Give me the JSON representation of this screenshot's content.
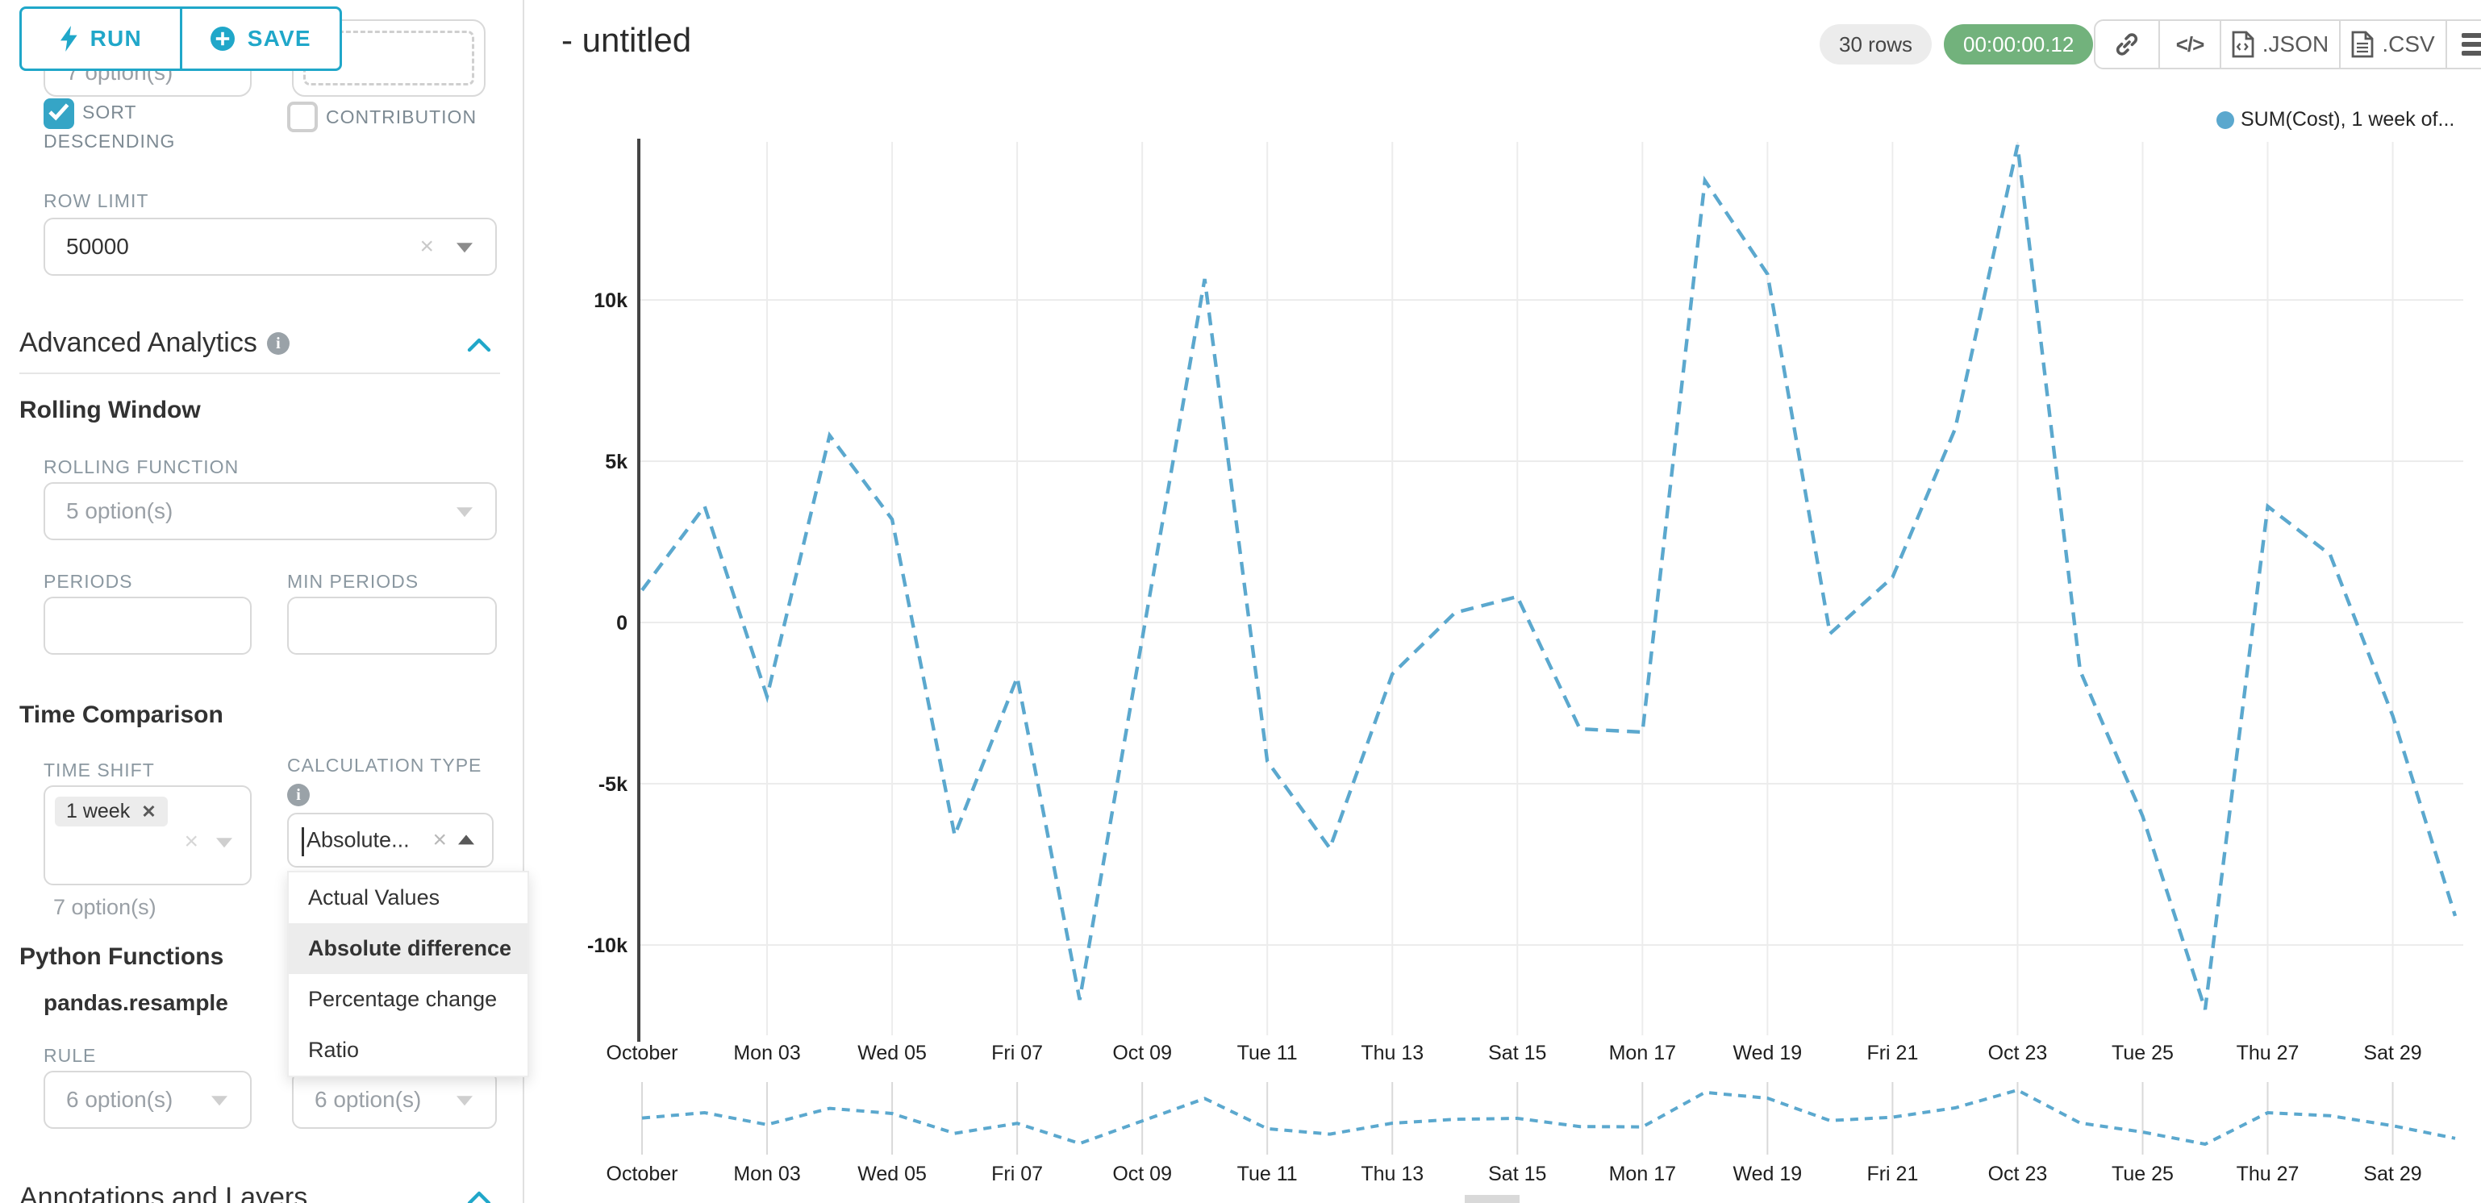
{
  "accent": "#20A7C9",
  "sidebar": {
    "run_label": "RUN",
    "save_label": "SAVE",
    "partial_select_value": "7 option(s)",
    "sort_descending": {
      "label_line1": "SORT",
      "label_line2": "DESCENDING",
      "checked": true
    },
    "contribution": {
      "label": "CONTRIBUTION",
      "checked": false
    },
    "row_limit": {
      "label": "ROW LIMIT",
      "value": "50000"
    },
    "advanced_analytics_title": "Advanced Analytics",
    "rolling_window": {
      "title": "Rolling Window",
      "rolling_function_label": "ROLLING FUNCTION",
      "rolling_function_value": "5 option(s)",
      "periods_label": "PERIODS",
      "min_periods_label": "MIN PERIODS"
    },
    "time_comparison": {
      "title": "Time Comparison",
      "time_shift_label": "TIME SHIFT",
      "time_shift_tag": "1 week",
      "time_shift_placeholder": "7 option(s)",
      "calculation_type_label": "CALCULATION TYPE",
      "calculation_type_value": "Absolute...",
      "dropdown_options": [
        "Actual Values",
        "Absolute difference",
        "Percentage change",
        "Ratio"
      ],
      "dropdown_selected": "Absolute difference"
    },
    "python_functions": {
      "title": "Python Functions",
      "function_name": "pandas.resample",
      "rule_label": "RULE",
      "rule_left_value": "6 option(s)",
      "rule_right_value": "6 option(s)"
    },
    "annotations_title": "Annotations and Layers"
  },
  "header": {
    "title": "- untitled",
    "rows_badge": "30 rows",
    "timer": "00:00:00.12",
    "json_label": ".JSON",
    "csv_label": ".CSV"
  },
  "chart_data": {
    "type": "line",
    "title": "- untitled",
    "line_style": "dashed",
    "line_color": "#5BA8CE",
    "grid": true,
    "legend": {
      "label": "SUM(Cost), 1 week of...",
      "color": "#5BA8CE",
      "position": "top-right"
    },
    "ylabel": "",
    "xlabel": "",
    "ylim": [
      -12700,
      15050
    ],
    "y_ticks": [
      {
        "value": 10000,
        "label": "10k"
      },
      {
        "value": 5000,
        "label": "5k"
      },
      {
        "value": 0,
        "label": "0"
      },
      {
        "value": -5000,
        "label": "-5k"
      },
      {
        "value": -10000,
        "label": "-10k"
      }
    ],
    "x_ticks": [
      {
        "day": 1,
        "label": "October"
      },
      {
        "day": 3,
        "label": "Mon 03"
      },
      {
        "day": 5,
        "label": "Wed 05"
      },
      {
        "day": 7,
        "label": "Fri 07"
      },
      {
        "day": 9,
        "label": "Oct 09"
      },
      {
        "day": 11,
        "label": "Tue 11"
      },
      {
        "day": 13,
        "label": "Thu 13"
      },
      {
        "day": 15,
        "label": "Sat 15"
      },
      {
        "day": 17,
        "label": "Mon 17"
      },
      {
        "day": 19,
        "label": "Wed 19"
      },
      {
        "day": 21,
        "label": "Fri 21"
      },
      {
        "day": 23,
        "label": "Oct 23"
      },
      {
        "day": 25,
        "label": "Tue 25"
      },
      {
        "day": 27,
        "label": "Thu 27"
      },
      {
        "day": 29,
        "label": "Sat 29"
      }
    ],
    "series": [
      {
        "name": "SUM(Cost), 1 week offset (Absolute difference)",
        "days": [
          1,
          2,
          3,
          4,
          5,
          6,
          7,
          8,
          9,
          10,
          11,
          12,
          13,
          14,
          15,
          16,
          17,
          18,
          19,
          20,
          21,
          22,
          23,
          24,
          25,
          26,
          27,
          28,
          29,
          30
        ],
        "values": [
          1000,
          3600,
          -2300,
          5800,
          3200,
          -6600,
          -1700,
          -11700,
          -500,
          10650,
          -4300,
          -7000,
          -1600,
          300,
          800,
          -3300,
          -3400,
          13700,
          10800,
          -350,
          1400,
          6000,
          14800,
          -1500,
          -6000,
          -12000,
          3600,
          2100,
          -2900,
          -9100
        ]
      }
    ],
    "mini_chart": true
  }
}
